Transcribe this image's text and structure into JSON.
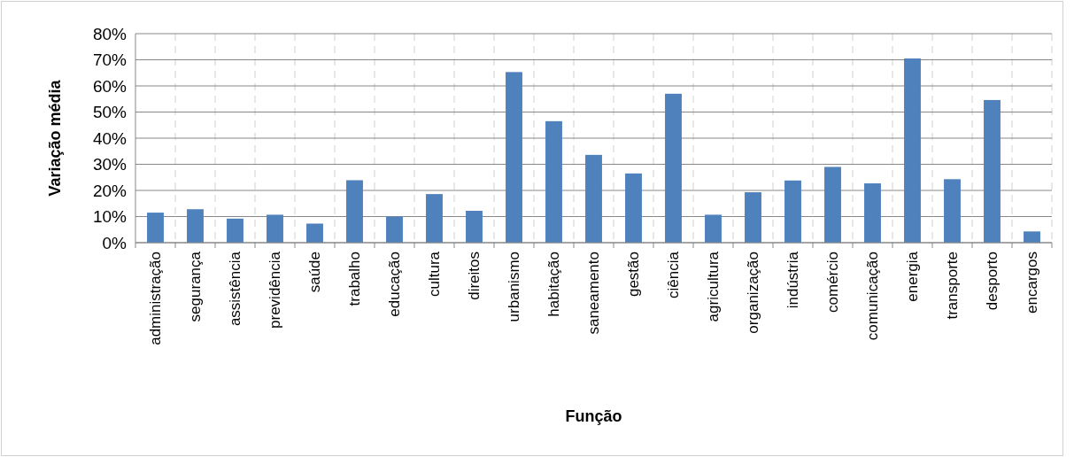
{
  "chart_data": {
    "type": "bar",
    "xlabel": "Função",
    "ylabel": "Variação média",
    "categories": [
      "administração",
      "segurança",
      "assistência",
      "previdência",
      "saúde",
      "trabalho",
      "educação",
      "cultura",
      "direitos",
      "urbanismo",
      "habitação",
      "saneamento",
      "gestão",
      "ciência",
      "agricultura",
      "organização",
      "indústria",
      "comércio",
      "comunicação",
      "energia",
      "transporte",
      "desporto",
      "encargos"
    ],
    "values": [
      11.5,
      12.8,
      9.2,
      10.7,
      7.3,
      23.9,
      10.0,
      18.6,
      12.2,
      65.3,
      46.5,
      33.6,
      26.5,
      57.0,
      10.7,
      19.3,
      23.8,
      29.0,
      22.7,
      70.5,
      24.3,
      54.6,
      4.3
    ],
    "color": "#4f81bd",
    "ylim": [
      0,
      80
    ],
    "yticks": [
      {
        "value": 0,
        "label": "0%"
      },
      {
        "value": 10,
        "label": "10%"
      },
      {
        "value": 20,
        "label": "20%"
      },
      {
        "value": 30,
        "label": "30%"
      },
      {
        "value": 40,
        "label": "40%"
      },
      {
        "value": 50,
        "label": "50%"
      },
      {
        "value": 60,
        "label": "60%"
      },
      {
        "value": 70,
        "label": "70%"
      },
      {
        "value": 80,
        "label": "80%"
      }
    ],
    "grid": true
  }
}
